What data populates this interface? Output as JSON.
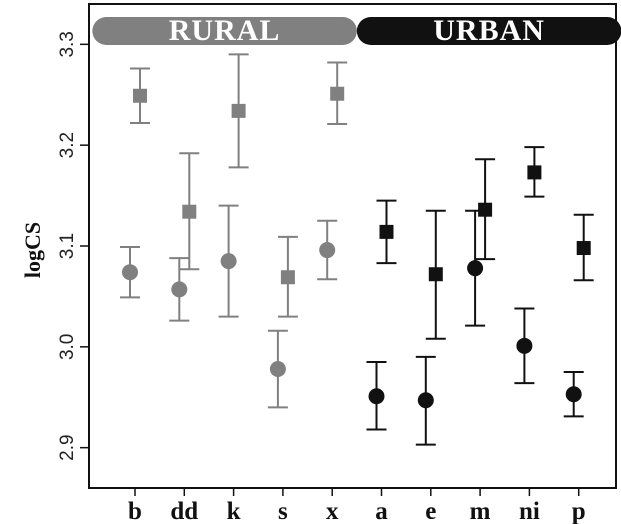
{
  "chart_data": {
    "type": "scatter",
    "ylabel": "logCS",
    "ylim": [
      2.86,
      3.34
    ],
    "yticks": [
      2.9,
      3.0,
      3.1,
      3.2,
      3.3
    ],
    "ytick_labels": [
      "2.9",
      "3.0",
      "3.1",
      "3.2",
      "3.3"
    ],
    "categories": [
      "b",
      "dd",
      "k",
      "s",
      "x",
      "a",
      "e",
      "m",
      "ni",
      "p"
    ],
    "groups": [
      {
        "label": "RURAL",
        "categories": [
          "b",
          "dd",
          "k",
          "s",
          "x"
        ],
        "color": "#808080"
      },
      {
        "label": "URBAN",
        "categories": [
          "a",
          "e",
          "m",
          "ni",
          "p"
        ],
        "color": "#111111"
      }
    ],
    "series": [
      {
        "marker": "square",
        "points": [
          {
            "category": "b",
            "value": 3.249,
            "low": 3.222,
            "high": 3.276
          },
          {
            "category": "dd",
            "value": 3.134,
            "low": 3.077,
            "high": 3.192
          },
          {
            "category": "k",
            "value": 3.234,
            "low": 3.178,
            "high": 3.29
          },
          {
            "category": "s",
            "value": 3.069,
            "low": 3.03,
            "high": 3.109
          },
          {
            "category": "x",
            "value": 3.251,
            "low": 3.221,
            "high": 3.282
          },
          {
            "category": "a",
            "value": 3.114,
            "low": 3.083,
            "high": 3.145
          },
          {
            "category": "e",
            "value": 3.072,
            "low": 3.008,
            "high": 3.135
          },
          {
            "category": "m",
            "value": 3.136,
            "low": 3.087,
            "high": 3.186
          },
          {
            "category": "ni",
            "value": 3.173,
            "low": 3.149,
            "high": 3.198
          },
          {
            "category": "p",
            "value": 3.098,
            "low": 3.066,
            "high": 3.131
          }
        ]
      },
      {
        "marker": "circle",
        "points": [
          {
            "category": "b",
            "value": 3.074,
            "low": 3.049,
            "high": 3.099
          },
          {
            "category": "dd",
            "value": 3.057,
            "low": 3.026,
            "high": 3.088
          },
          {
            "category": "k",
            "value": 3.085,
            "low": 3.03,
            "high": 3.14
          },
          {
            "category": "s",
            "value": 2.978,
            "low": 2.94,
            "high": 3.016
          },
          {
            "category": "x",
            "value": 3.096,
            "low": 3.067,
            "high": 3.125
          },
          {
            "category": "a",
            "value": 2.951,
            "low": 2.918,
            "high": 2.985
          },
          {
            "category": "e",
            "value": 2.947,
            "low": 2.903,
            "high": 2.99
          },
          {
            "category": "m",
            "value": 3.078,
            "low": 3.021,
            "high": 3.135
          },
          {
            "category": "ni",
            "value": 3.001,
            "low": 2.964,
            "high": 3.038
          },
          {
            "category": "p",
            "value": 2.953,
            "low": 2.931,
            "high": 2.975
          }
        ]
      }
    ],
    "grid": false,
    "legend": "none"
  }
}
